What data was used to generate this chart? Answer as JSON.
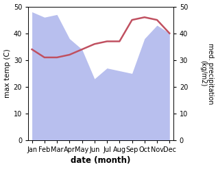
{
  "months": [
    "Jan",
    "Feb",
    "Mar",
    "Apr",
    "May",
    "Jun",
    "Jul",
    "Aug",
    "Sep",
    "Oct",
    "Nov",
    "Dec"
  ],
  "x": [
    0,
    1,
    2,
    3,
    4,
    5,
    6,
    7,
    8,
    9,
    10,
    11
  ],
  "temp": [
    34,
    31,
    31,
    32,
    34,
    36,
    37,
    37,
    45,
    46,
    45,
    40
  ],
  "precip": [
    48,
    46,
    47,
    38,
    34,
    23,
    27,
    26,
    25,
    38,
    43,
    40
  ],
  "xlabel": "date (month)",
  "ylabel_left": "max temp (C)",
  "ylabel_right": "med. precipitation\n(kg/m2)",
  "ylim_left": [
    0,
    50
  ],
  "ylim_right": [
    0,
    50
  ],
  "yticks_left": [
    0,
    10,
    20,
    30,
    40,
    50
  ],
  "yticks_right": [
    0,
    10,
    20,
    30,
    40,
    50
  ],
  "temp_color": "#c05060",
  "precip_fill_color": "#b8bfee",
  "bg_color": "#ffffff",
  "temp_linewidth": 1.8
}
